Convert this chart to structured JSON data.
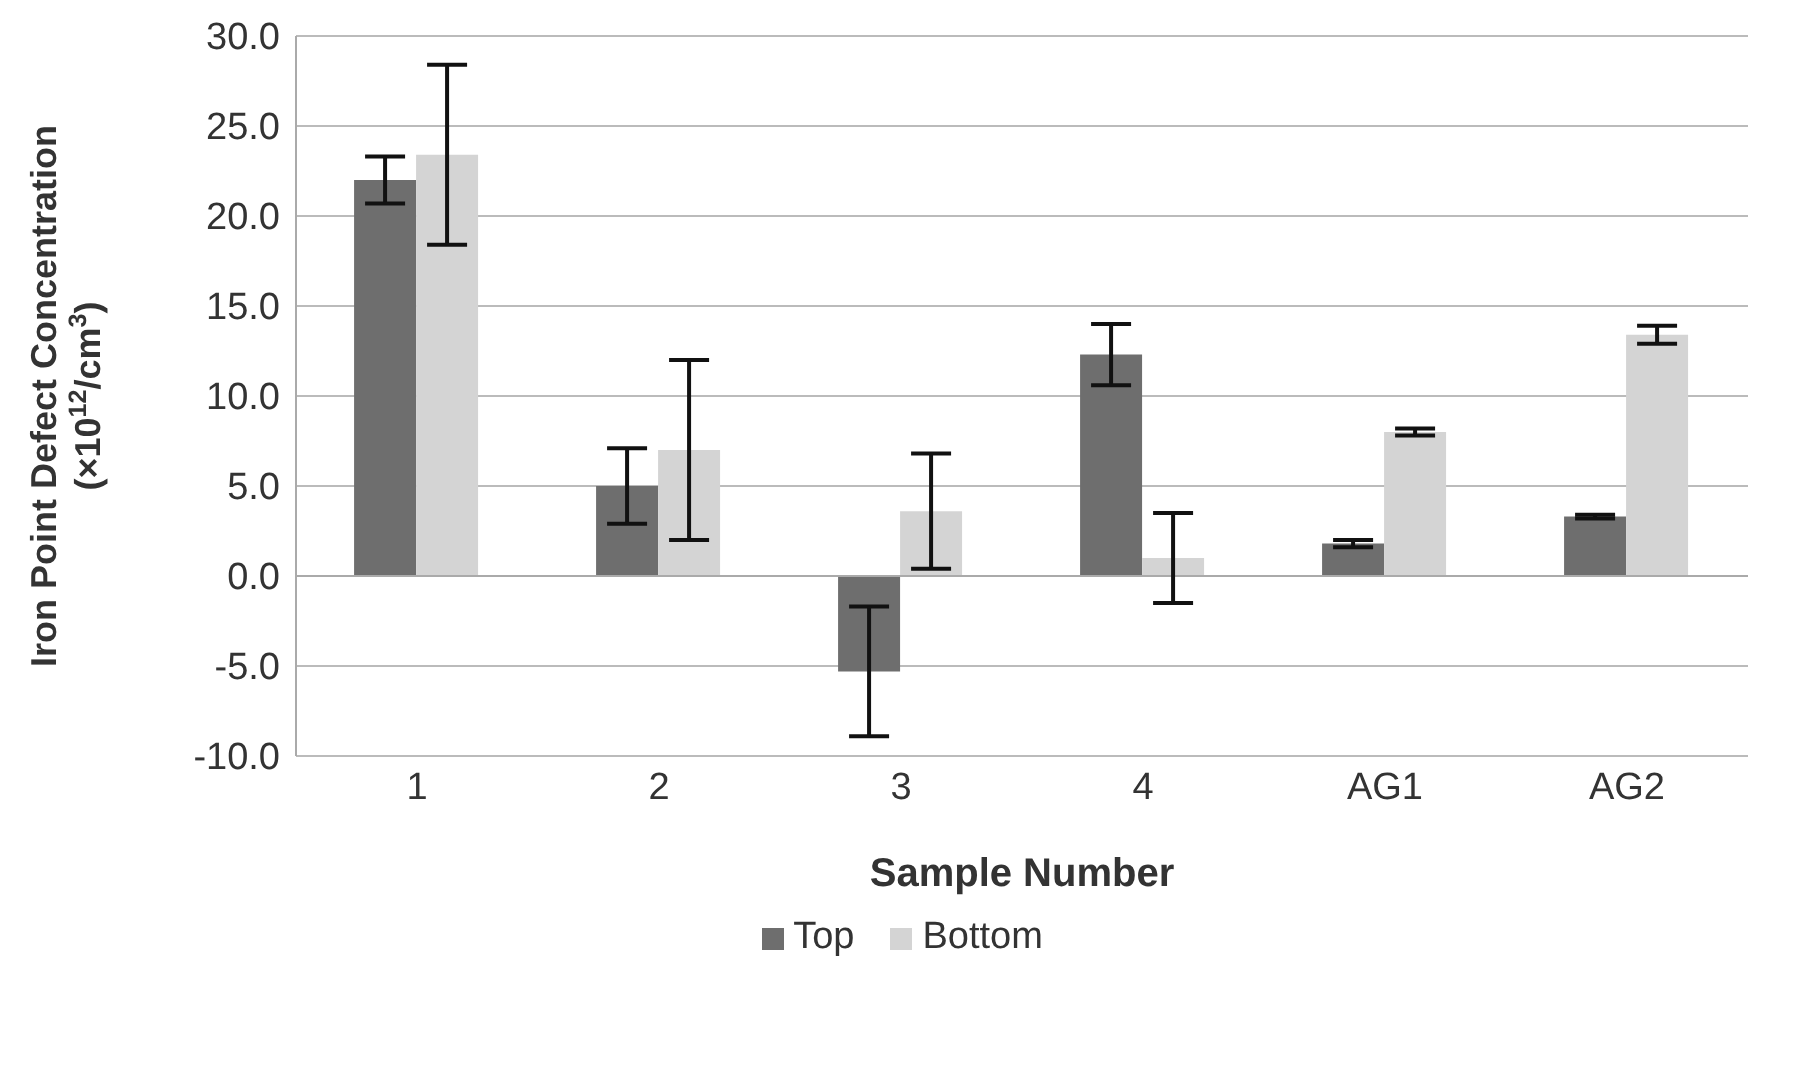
{
  "chart_data": {
    "type": "bar",
    "xlabel": "Sample Number",
    "ylabel": "Iron Point Defect Concentration\n(×10$^{12}$/cm$^{3}$)",
    "categories": [
      "1",
      "2",
      "3",
      "4",
      "AG1",
      "AG2"
    ],
    "series": [
      {
        "name": "Top",
        "color": "#6e6e6e",
        "values": [
          22.0,
          5.0,
          -5.3,
          12.3,
          1.8,
          3.3
        ],
        "errors": [
          1.3,
          2.1,
          3.6,
          1.7,
          0.2,
          0.1
        ]
      },
      {
        "name": "Bottom",
        "color": "#d4d4d4",
        "values": [
          23.4,
          7.0,
          3.6,
          1.0,
          8.0,
          13.4
        ],
        "errors": [
          5.0,
          5.0,
          3.2,
          2.5,
          0.2,
          0.5
        ]
      }
    ],
    "ylim": [
      -10,
      30
    ],
    "yticks": [
      {
        "value": -10,
        "label": "-10.0"
      },
      {
        "value": -5,
        "label": "-5.0"
      },
      {
        "value": 0,
        "label": "0.0"
      },
      {
        "value": 5,
        "label": "5.0"
      },
      {
        "value": 10,
        "label": "10.0"
      },
      {
        "value": 15,
        "label": "15.0"
      },
      {
        "value": 20,
        "label": "20.0"
      },
      {
        "value": 25,
        "label": "25.0"
      },
      {
        "value": 30,
        "label": "30.0"
      }
    ],
    "grid": "y",
    "legend": "bottom"
  }
}
